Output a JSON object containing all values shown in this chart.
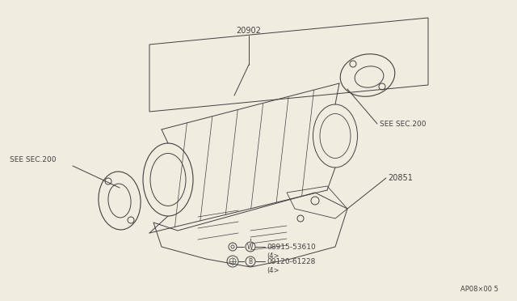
{
  "bg_color": "#f0ece0",
  "line_color": "#404040",
  "part_numbers": {
    "main_body": "20851",
    "converter": "20902",
    "washer": "08915-53610",
    "bolt": "09120-61228",
    "washer_label": "W",
    "bolt_label": "B",
    "qty_w": "(4>",
    "qty_b": "(4>"
  },
  "labels": {
    "see_sec_200_left": "SEE SEC.200",
    "see_sec_200_right": "SEE SEC.200"
  },
  "footnote": "AP08×00 5"
}
